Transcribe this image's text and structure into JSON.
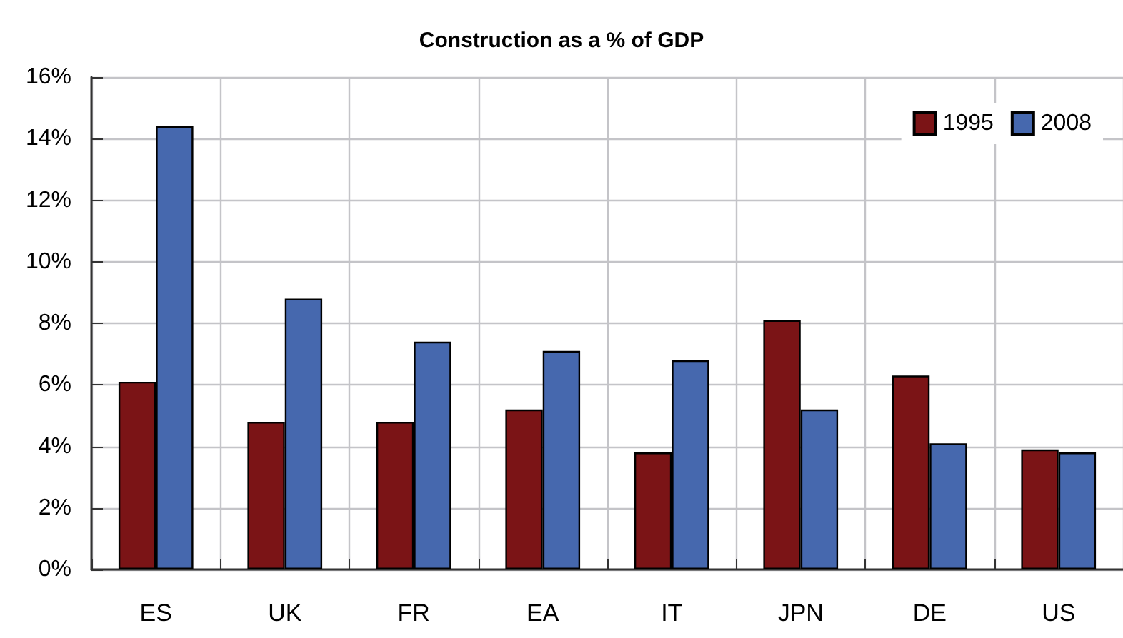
{
  "chart_data": {
    "type": "bar",
    "title": "Construction as a % of GDP",
    "categories": [
      "ES",
      "UK",
      "FR",
      "EA",
      "IT",
      "JPN",
      "DE",
      "US"
    ],
    "series": [
      {
        "name": "1995",
        "color": "#7b1416",
        "values": [
          6.1,
          4.8,
          4.8,
          5.2,
          3.8,
          8.1,
          6.3,
          3.9
        ]
      },
      {
        "name": "2008",
        "color": "#4668ae",
        "values": [
          14.4,
          8.8,
          7.4,
          7.1,
          6.8,
          5.2,
          4.1,
          3.8
        ]
      }
    ],
    "ylim": [
      0,
      16
    ],
    "yticks": [
      {
        "value": 0,
        "label": "0%"
      },
      {
        "value": 2,
        "label": "2%"
      },
      {
        "value": 4,
        "label": "4%"
      },
      {
        "value": 6,
        "label": "6%"
      },
      {
        "value": 8,
        "label": "8%"
      },
      {
        "value": 10,
        "label": "10%"
      },
      {
        "value": 12,
        "label": "12%"
      },
      {
        "value": 14,
        "label": "14%"
      },
      {
        "value": 16,
        "label": "16%"
      }
    ],
    "grid": true,
    "legend": "top right"
  }
}
